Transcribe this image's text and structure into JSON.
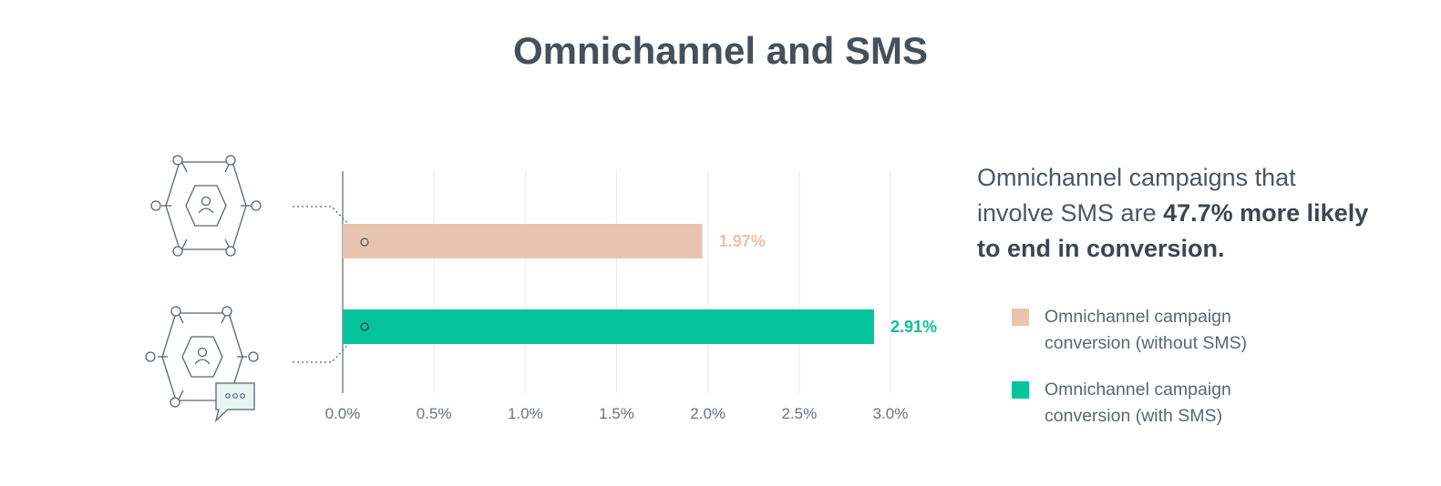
{
  "title": "Omnichannel and SMS",
  "callout": {
    "prefix": "Omnichannel campaigns that involve SMS are ",
    "emphasis": "47.7% more likely to end in conversion."
  },
  "icons": [
    "hexagon-user-network-icon",
    "hexagon-user-network-sms-icon",
    "chat-bubble-icon"
  ],
  "chart_data": {
    "type": "bar",
    "orientation": "horizontal",
    "categories": [
      "Omnichannel campaign conversion (without SMS)",
      "Omnichannel campaign conversion (with SMS)"
    ],
    "values": [
      1.97,
      2.91
    ],
    "value_labels": [
      "1.97%",
      "2.91%"
    ],
    "colors": [
      "#e9c4b0",
      "#05c39d"
    ],
    "label_colors": [
      "#e8c3ad",
      "#05bf99"
    ],
    "xlim": [
      0,
      3.0
    ],
    "xticks": [
      0,
      0.5,
      1.0,
      1.5,
      2.0,
      2.5,
      3.0
    ],
    "xtick_labels": [
      "0.0%",
      "0.5%",
      "1.0%",
      "1.5%",
      "2.0%",
      "2.5%",
      "3.0%"
    ],
    "grid": "vertical",
    "legend": [
      {
        "label": "Omnichannel campaign conversion (without SMS)",
        "color": "#e9c4b0"
      },
      {
        "label": "Omnichannel campaign conversion (with SMS)",
        "color": "#05c39d"
      }
    ],
    "legend_position": "right"
  }
}
